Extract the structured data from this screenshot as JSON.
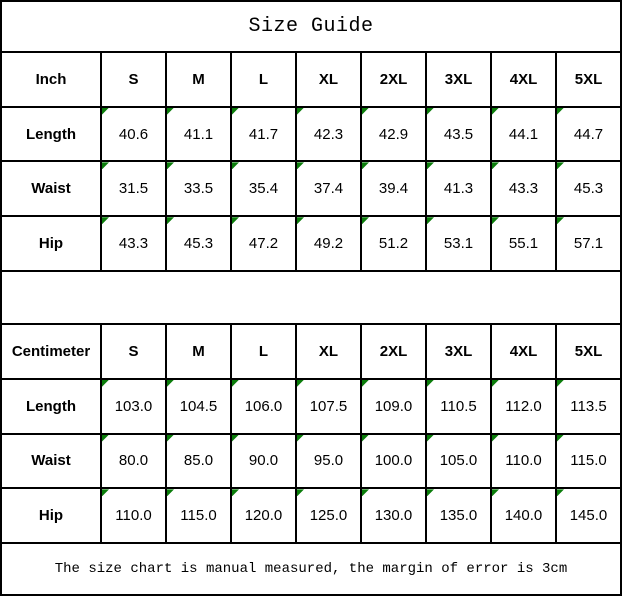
{
  "title": "Size Guide",
  "footer": "The size chart is manual measured, the margin of error is 3cm",
  "colors": {
    "background": "#ffffff",
    "border": "#000000",
    "text": "#000000",
    "marker_green": "#0b7d0b"
  },
  "sizes": [
    "S",
    "M",
    "L",
    "XL",
    "2XL",
    "3XL",
    "4XL",
    "5XL"
  ],
  "tables": [
    {
      "unit_label": "Inch",
      "rows": [
        {
          "label": "Length",
          "values": [
            "40.6",
            "41.1",
            "41.7",
            "42.3",
            "42.9",
            "43.5",
            "44.1",
            "44.7"
          ]
        },
        {
          "label": "Waist",
          "values": [
            "31.5",
            "33.5",
            "35.4",
            "37.4",
            "39.4",
            "41.3",
            "43.3",
            "45.3"
          ]
        },
        {
          "label": "Hip",
          "values": [
            "43.3",
            "45.3",
            "47.2",
            "49.2",
            "51.2",
            "53.1",
            "55.1",
            "57.1"
          ]
        }
      ]
    },
    {
      "unit_label": "Centimeter",
      "rows": [
        {
          "label": "Length",
          "values": [
            "103.0",
            "104.5",
            "106.0",
            "107.5",
            "109.0",
            "110.5",
            "112.0",
            "113.5"
          ]
        },
        {
          "label": "Waist",
          "values": [
            "80.0",
            "85.0",
            "90.0",
            "95.0",
            "100.0",
            "105.0",
            "110.0",
            "115.0"
          ]
        },
        {
          "label": "Hip",
          "values": [
            "110.0",
            "115.0",
            "120.0",
            "125.0",
            "130.0",
            "135.0",
            "140.0",
            "145.0"
          ]
        }
      ]
    }
  ]
}
